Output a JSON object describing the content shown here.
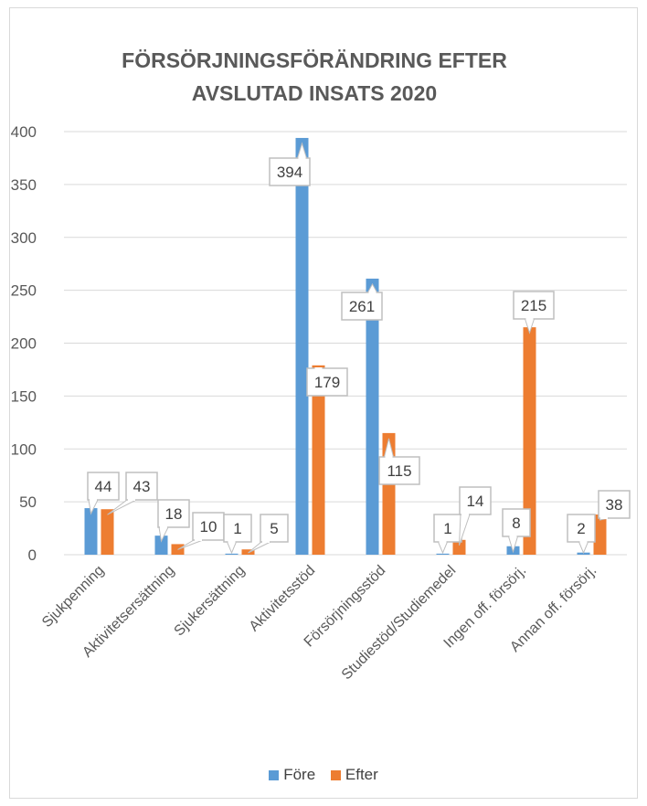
{
  "chart_data": {
    "type": "bar",
    "title_lines": [
      "FÖRSÖRJNINGSFÖRÄNDRING EFTER",
      "AVSLUTAD INSATS 2020"
    ],
    "categories": [
      "Sjukpenning",
      "Aktivitetsersättning",
      "Sjukersättning",
      "Aktivitetsstöd",
      "Försörjningsstöd",
      "Studiestöd/Studiemedel",
      "Ingen off. försörj.",
      "Annan off. försörj."
    ],
    "series": [
      {
        "name": "Före",
        "color": "#5b9bd5",
        "values": [
          44,
          18,
          1,
          394,
          261,
          1,
          8,
          2
        ]
      },
      {
        "name": "Efter",
        "color": "#ed7d31",
        "values": [
          43,
          10,
          5,
          179,
          115,
          14,
          215,
          38
        ]
      }
    ],
    "ylim": [
      0,
      400
    ],
    "yticks": [
      0,
      50,
      100,
      150,
      200,
      250,
      300,
      350,
      400
    ],
    "grid": true,
    "legend_position": "bottom"
  }
}
